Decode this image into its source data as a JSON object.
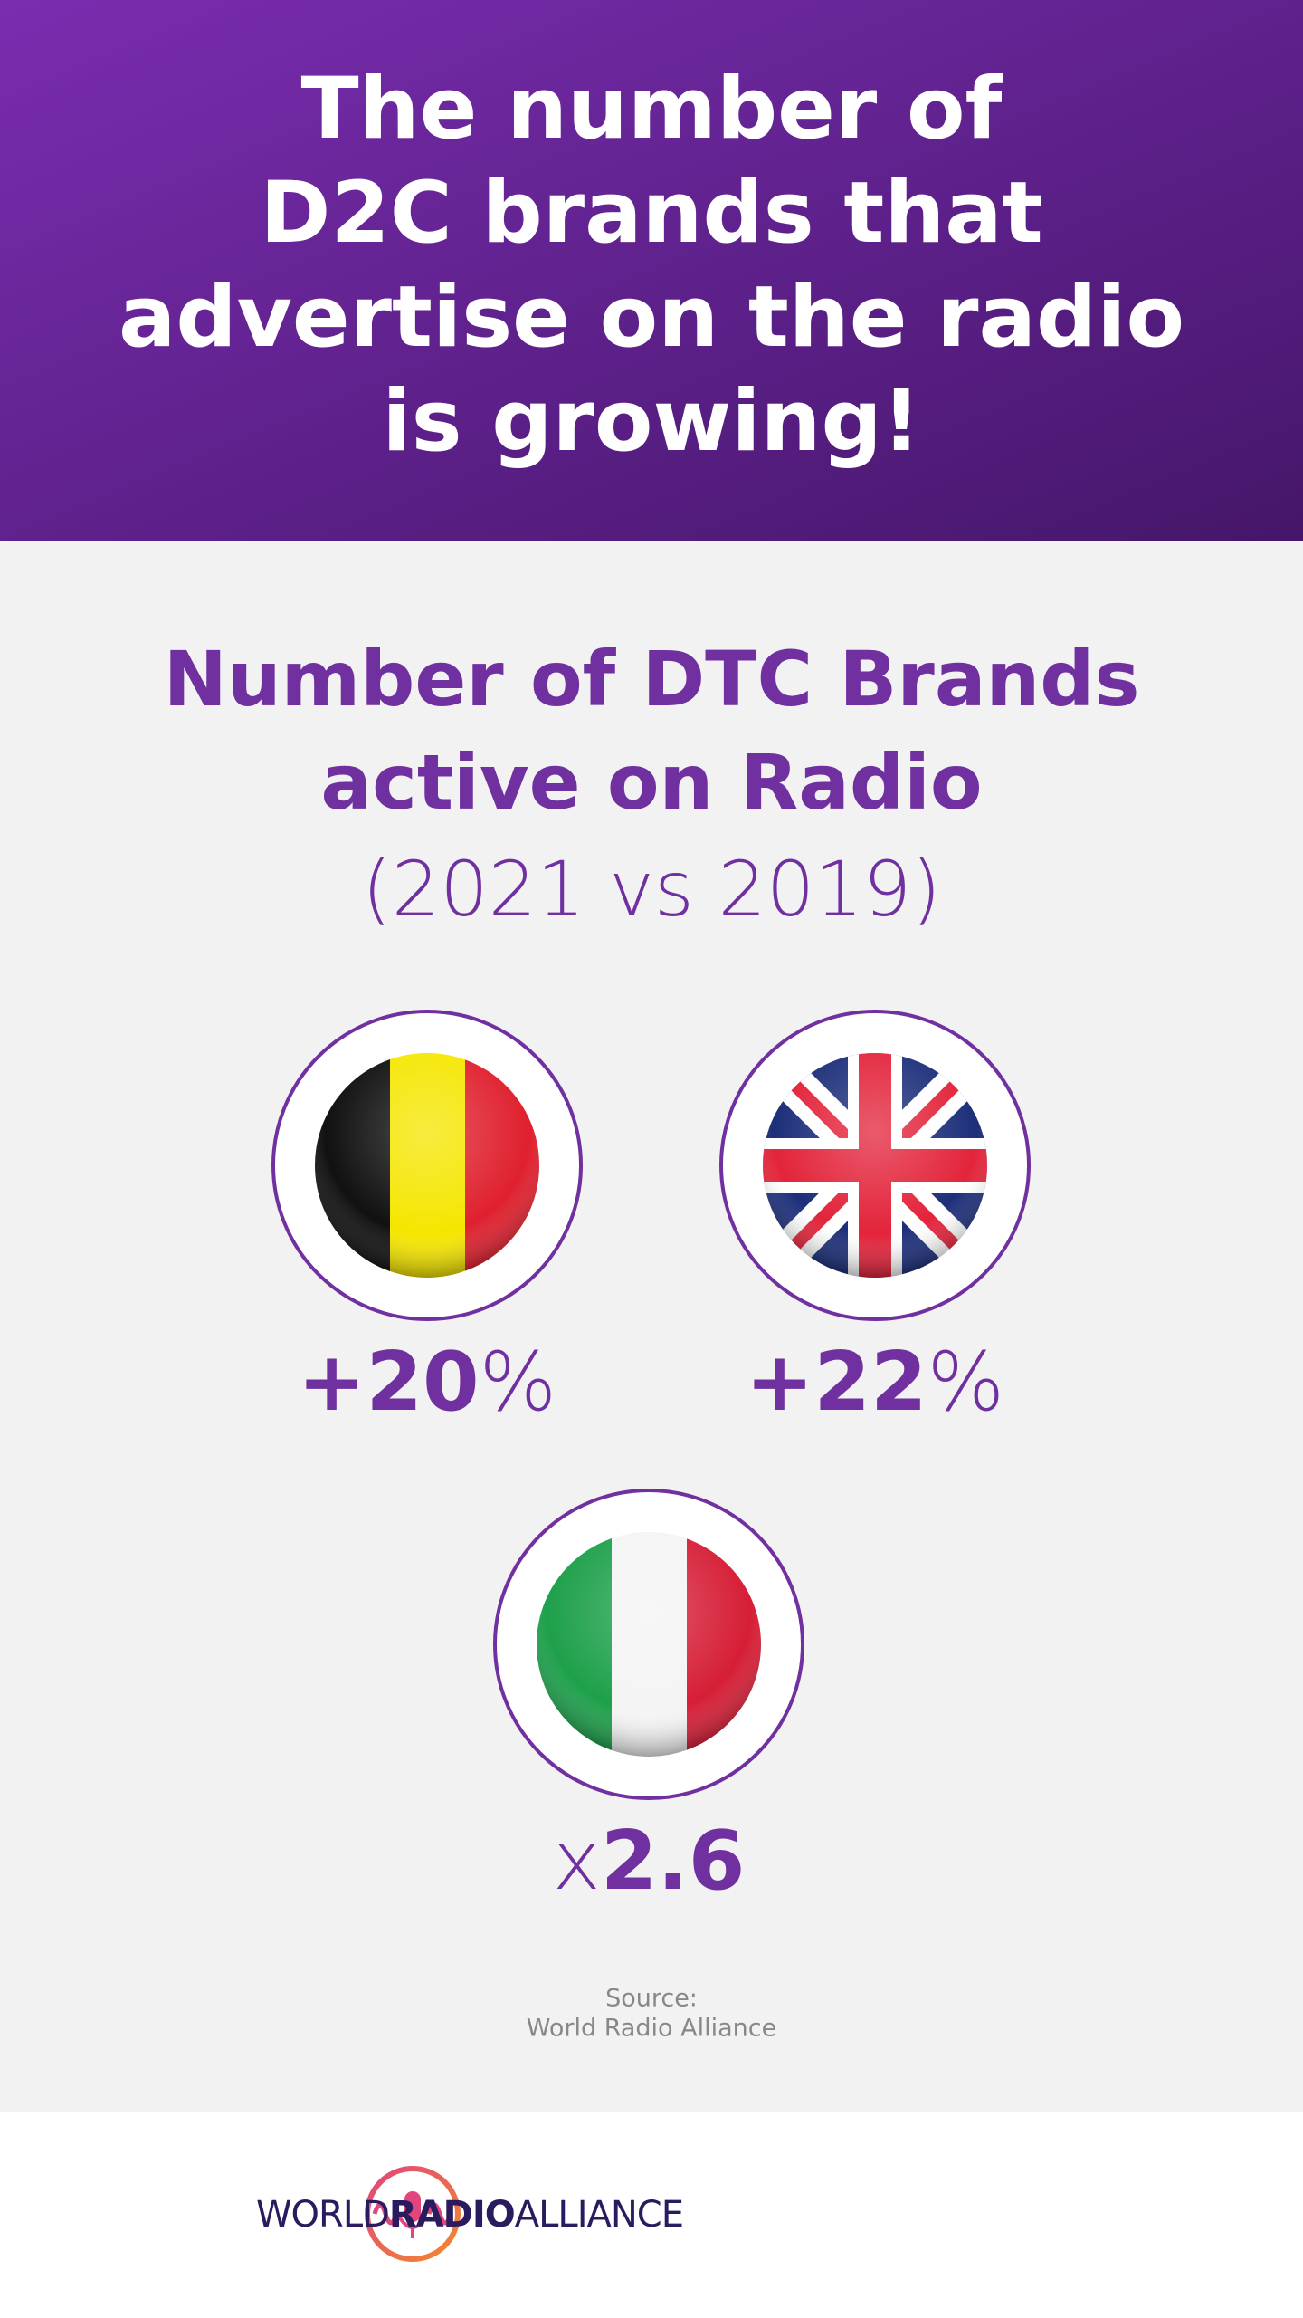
{
  "header": {
    "title_lines": [
      "The number of",
      "D2C brands that",
      "advertise on the radio",
      "is growing!"
    ]
  },
  "main": {
    "title_lines": [
      "Number of DTC Brands",
      "active on Radio"
    ],
    "subtitle": "(2021 vs 2019)",
    "stats": [
      {
        "parts": [
          {
            "text": "+20",
            "bold": true
          },
          {
            "text": "%",
            "bold": false
          }
        ]
      },
      {
        "parts": [
          {
            "text": "+22",
            "bold": true
          },
          {
            "text": "%",
            "bold": false
          }
        ]
      },
      {
        "parts": [
          {
            "text": "x",
            "bold": false
          },
          {
            "text": "2.6",
            "bold": true
          }
        ]
      }
    ],
    "source": [
      "Source:",
      "World Radio Alliance"
    ]
  },
  "footer": {
    "logo": [
      {
        "text": "WORLD",
        "bold": false
      },
      {
        "text": "RADIO",
        "bold": true
      },
      {
        "text": "ALLIANCE",
        "bold": false
      }
    ]
  }
}
